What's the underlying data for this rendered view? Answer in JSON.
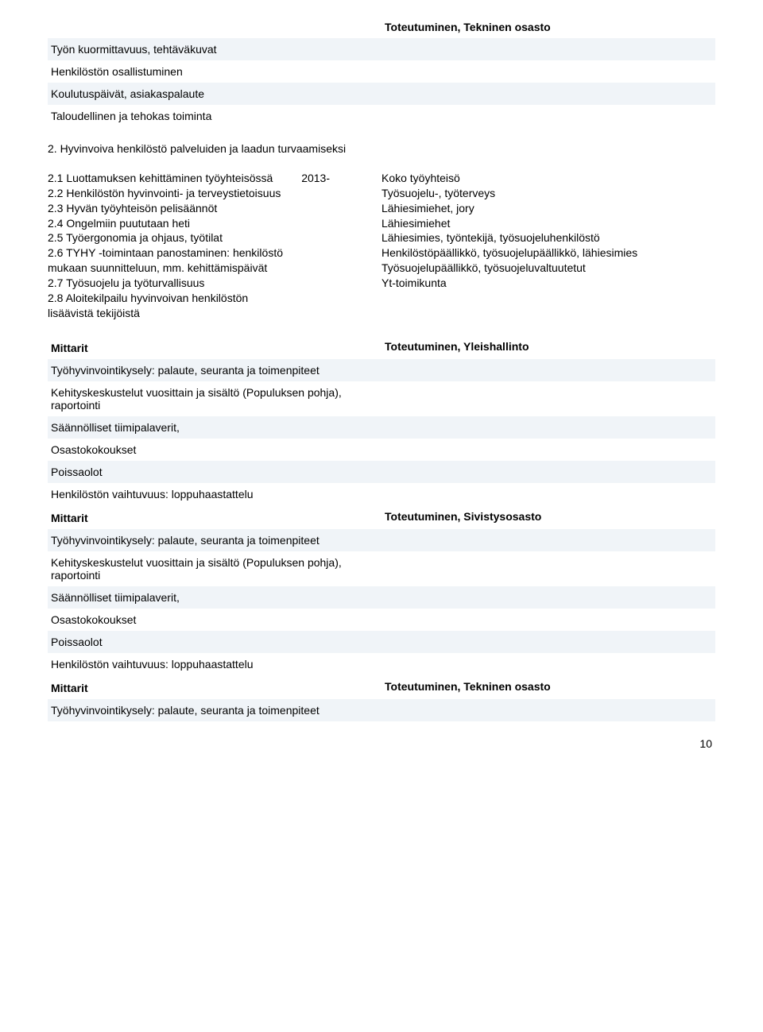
{
  "topTable": {
    "col2Header": "Toteutuminen, Tekninen osasto",
    "rows": [
      "Työn kuormittavuus, tehtäväkuvat",
      "Henkilöstön osallistuminen",
      "Koulutuspäivät, asiakaspalaute",
      "Taloudellinen ja tehokas toiminta"
    ]
  },
  "section2": {
    "heading": "2. Hyvinvoiva henkilöstö palveluiden ja laadun turvaamiseksi",
    "leftItems": "2.1 Luottamuksen kehittäminen työyhteisössä\n2.2 Henkilöstön hyvinvointi- ja terveystietoisuus\n2.3 Hyvän työyhteisön pelisäännöt\n2.4 Ongelmiin puututaan heti\n2.5 Työergonomia ja ohjaus, työtilat\n2.6 TYHY -toimintaan panostaminen: henkilöstö mukaan suunnitteluun, mm. kehittämispäivät\n2.7 Työsuojelu ja työturvallisuus\n2.8 Aloitekilpailu hyvinvoivan henkilöstön lisäävistä tekijöistä",
    "midText": "2013-",
    "rightText": "Koko työyhteisö\nTyösuojelu-, työterveys\nLähiesimiehet, jory\nLähiesimiehet\nLähiesimies, työntekijä, työsuojeluhenkilöstö\nHenkilöstöpäällikkö, työsuojelupäällikkö, lähiesimies\nTyösuojelupäällikkö, työsuojeluvaltuutetut\nYt-toimikunta"
  },
  "mittaritBlock1": {
    "header": "Mittarit",
    "col2Header": "Toteutuminen, Yleishallinto",
    "rows": [
      "Työhyvinvointikysely: palaute, seuranta ja toimenpiteet",
      "Kehityskeskustelut vuosittain ja sisältö (Populuksen pohja), raportointi",
      "Säännölliset tiimipalaverit,",
      "Osastokokoukset",
      "Poissaolot",
      "Henkilöstön vaihtuvuus: loppuhaastattelu"
    ]
  },
  "mittaritBlock2": {
    "header": "Mittarit",
    "col2Header": "Toteutuminen, Sivistysosasto",
    "rows": [
      "Työhyvinvointikysely: palaute, seuranta ja toimenpiteet",
      "Kehityskeskustelut vuosittain ja sisältö (Populuksen pohja), raportointi",
      "Säännölliset tiimipalaverit,",
      "Osastokokoukset",
      "Poissaolot",
      "Henkilöstön vaihtuvuus: loppuhaastattelu"
    ]
  },
  "mittaritBlock3": {
    "header": "Mittarit",
    "col2Header": "Toteutuminen, Tekninen osasto",
    "rows": [
      "Työhyvinvointikysely: palaute, seuranta ja toimenpiteet"
    ]
  },
  "pageNumber": "10",
  "colors": {
    "stripe": "#f0f4f8",
    "text": "#000000",
    "background": "#ffffff"
  }
}
